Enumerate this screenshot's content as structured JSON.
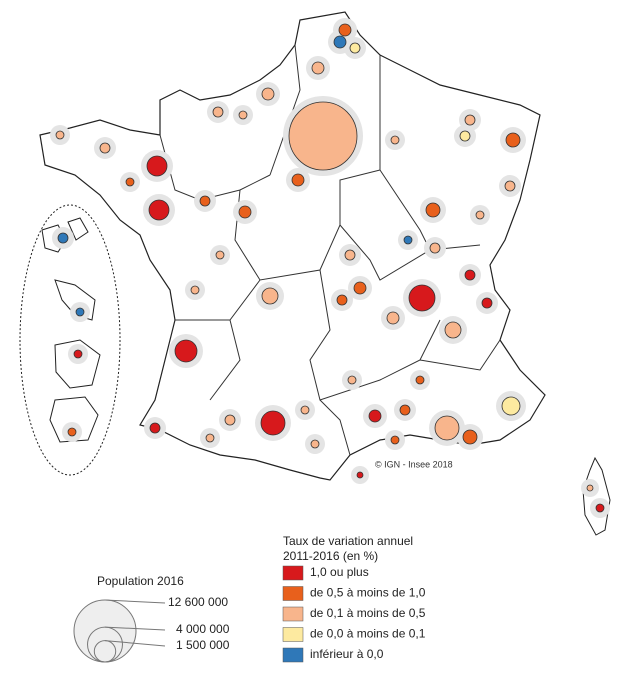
{
  "legend": {
    "title_lines": [
      "Taux de variation annuel",
      "2011-2016 (en %)"
    ],
    "classes": [
      {
        "label": "1,0 ou plus",
        "color": "#d7191c"
      },
      {
        "label": "de 0,5 à moins de 1,0",
        "color": "#e8601c"
      },
      {
        "label": "de 0,1 à moins de 0,5",
        "color": "#f8b58c"
      },
      {
        "label": "de 0,0 à moins de 0,1",
        "color": "#fdeaa0"
      },
      {
        "label": "inférieur à 0,0",
        "color": "#2f78b8"
      }
    ]
  },
  "population_legend": {
    "title": "Population 2016",
    "sizes": [
      {
        "value": 12600000,
        "label": "12 600 000"
      },
      {
        "value": 4000000,
        "label": "4 000 000"
      },
      {
        "value": 1500000,
        "label": "1 500 000"
      }
    ]
  },
  "credit": "© IGN - Insee 2018"
}
